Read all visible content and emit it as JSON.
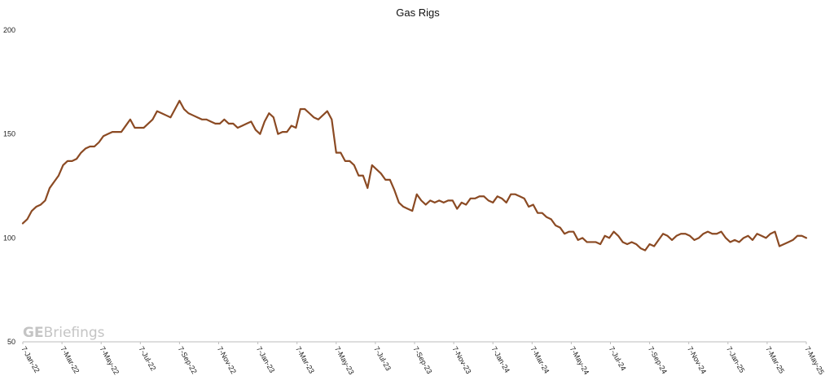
{
  "chart_data": {
    "type": "line",
    "title": "Gas Rigs",
    "xlabel": "",
    "ylabel": "",
    "ylim": [
      50,
      200
    ],
    "yticks": [
      50,
      100,
      150,
      200
    ],
    "x_tick_labels": [
      "7-Jan-22",
      "7-Mar-22",
      "7-May-22",
      "7-Jul-22",
      "7-Sep-22",
      "7-Nov-22",
      "7-Jan-23",
      "7-Mar-23",
      "7-May-23",
      "7-Jul-23",
      "7-Sep-23",
      "7-Nov-23",
      "7-Jan-24",
      "7-Mar-24",
      "7-May-24",
      "7-Jul-24",
      "7-Sep-24",
      "7-Nov-24",
      "7-Jan-25",
      "7-Mar-25",
      "7-May-25"
    ],
    "x_start": "7-Jan-22",
    "x_frequency": "weekly",
    "grid": false,
    "line_color": "#8b4a23",
    "series": [
      {
        "values": [
          107,
          109,
          113,
          115,
          116,
          118,
          124,
          127,
          130,
          135,
          137,
          137,
          138,
          141,
          143,
          144,
          144,
          146,
          149,
          150,
          151,
          151,
          151,
          154,
          157,
          153,
          153,
          153,
          155,
          157,
          161,
          160,
          159,
          158,
          162,
          166,
          162,
          160,
          159,
          158,
          157,
          157,
          156,
          155,
          155,
          157,
          155,
          155,
          153,
          154,
          155,
          156,
          152,
          150,
          156,
          160,
          158,
          150,
          151,
          151,
          154,
          153,
          162,
          162,
          160,
          158,
          157,
          159,
          161,
          157,
          141,
          141,
          137,
          137,
          135,
          130,
          130,
          124,
          135,
          133,
          131,
          128,
          128,
          123,
          117,
          115,
          114,
          113,
          121,
          118,
          116,
          118,
          117,
          118,
          117,
          118,
          118,
          114,
          117,
          116,
          119,
          119,
          120,
          120,
          118,
          117,
          120,
          119,
          117,
          121,
          121,
          120,
          119,
          115,
          116,
          112,
          112,
          110,
          109,
          106,
          105,
          102,
          103,
          103,
          99,
          100,
          98,
          98,
          98,
          97,
          101,
          100,
          103,
          101,
          98,
          97,
          98,
          97,
          95,
          94,
          97,
          96,
          99,
          102,
          101,
          99,
          101,
          102,
          102,
          101,
          99,
          100,
          102,
          103,
          102,
          102,
          103,
          100,
          98,
          99,
          98,
          100,
          101,
          99,
          102,
          101,
          100,
          102,
          103,
          96,
          97,
          98,
          99,
          101,
          101,
          100
        ]
      }
    ]
  },
  "watermark": {
    "bold": "GE",
    "regular": "Briefings"
  }
}
